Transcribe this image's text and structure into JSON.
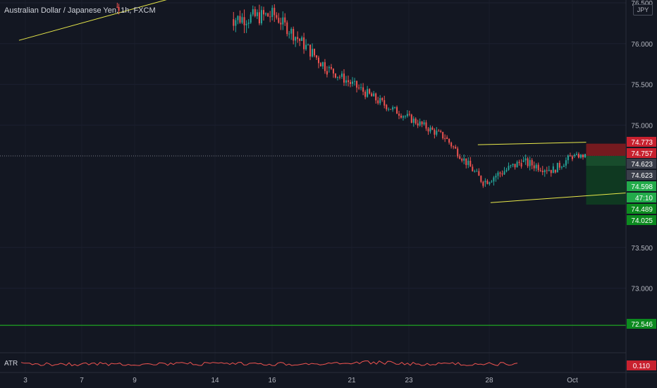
{
  "header": {
    "symbol_title": "Australian Dollar / Japanese Yen, 1h, FXCM",
    "currency": "JPY"
  },
  "indicator": {
    "label": "ATR",
    "value": "0.110"
  },
  "colors": {
    "background": "#131722",
    "up": "#26a69a",
    "down": "#ef5350",
    "trendline": "#e9e94a",
    "support": "#22c722",
    "stop_zone": "#7a1a20",
    "target_zone": "#0f3b22",
    "axis_text": "#b2b5be"
  },
  "chart_data": {
    "type": "candlestick",
    "title": "Australian Dollar / Japanese Yen, 1h, FXCM",
    "y_axis": {
      "range": [
        72.2,
        76.6
      ],
      "ticks": [
        "76.500",
        "76.000",
        "75.500",
        "75.000",
        "73.500",
        "73.000"
      ]
    },
    "x_axis": {
      "ticks": [
        "3",
        "7",
        "9",
        "14",
        "16",
        "21",
        "23",
        "28",
        "Oct"
      ]
    },
    "price_labels": [
      {
        "value": "74.773",
        "style": "red"
      },
      {
        "value": "74.757",
        "style": "red"
      },
      {
        "value": "74.623",
        "style": "gray"
      },
      {
        "value": "74.623",
        "style": "gray"
      },
      {
        "value": "74.598",
        "style": "green"
      },
      {
        "value": "47:10",
        "style": "green"
      },
      {
        "value": "74.489",
        "style": "darkgreen"
      },
      {
        "value": "74.025",
        "style": "darkgreen"
      },
      {
        "value": "72.546",
        "style": "darkgreen"
      }
    ],
    "horizontal_levels": [
      {
        "price": 72.546,
        "kind": "support-line"
      },
      {
        "price": 74.623,
        "kind": "current-price-dotted"
      }
    ],
    "candle_groups": [
      {
        "t0": 0.285,
        "t1": 0.295,
        "p0": 76.45,
        "p1": 76.45,
        "noise": 0.18
      },
      {
        "t0": 0.65,
        "t1": 0.785,
        "p0": 76.3,
        "p1": 76.35,
        "noise": 0.2
      },
      {
        "t0": 0.785,
        "t1": 0.95,
        "p0": 76.35,
        "p1": 75.7,
        "noise": 0.16
      },
      {
        "t0": 0.95,
        "t1": 1.13,
        "p0": 75.7,
        "p1": 75.25,
        "noise": 0.12
      },
      {
        "t0": 1.13,
        "t1": 1.32,
        "p0": 75.25,
        "p1": 74.85,
        "noise": 0.1
      },
      {
        "t0": 1.32,
        "t1": 1.44,
        "p0": 74.85,
        "p1": 74.3,
        "noise": 0.1
      },
      {
        "t0": 1.44,
        "t1": 1.56,
        "p0": 74.3,
        "p1": 74.55,
        "noise": 0.12
      },
      {
        "t0": 1.56,
        "t1": 1.66,
        "p0": 74.55,
        "p1": 74.45,
        "noise": 0.12
      },
      {
        "t0": 1.66,
        "t1": 1.72,
        "p0": 74.45,
        "p1": 74.62,
        "noise": 0.1
      },
      {
        "t0": 1.72,
        "t1": 1.76,
        "p0": 74.62,
        "p1": 74.62,
        "noise": 0.06
      }
    ],
    "trendlines": [
      {
        "name": "long-uptrend",
        "from": [
          -0.02,
          76.04
        ],
        "to": [
          0.64,
          76.75
        ]
      },
      {
        "name": "channel-top",
        "from": [
          1.42,
          74.76
        ],
        "to": [
          1.76,
          74.79
        ]
      },
      {
        "name": "channel-bottom",
        "from": [
          1.46,
          74.05
        ],
        "to": [
          1.96,
          74.19
        ]
      }
    ],
    "position_tool": {
      "t0": 1.76,
      "t1": 1.96,
      "entry": 74.623,
      "stop": 74.773,
      "target": 74.025
    }
  }
}
